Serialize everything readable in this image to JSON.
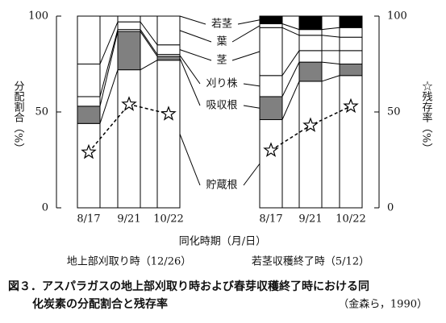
{
  "chart_data": [
    {
      "type": "bar",
      "stacked": true,
      "subtitle": "地上部刈取り時（12/26）",
      "ylabel": "分配割合（%）",
      "categories": [
        "8/17",
        "9/21",
        "10/22"
      ],
      "ylim": [
        0,
        100
      ],
      "yticks": [
        0,
        50,
        100
      ],
      "y2lim": [
        0,
        100
      ],
      "series": [
        {
          "name": "貯蔵根",
          "color": "#ffffff",
          "values": [
            44,
            72,
            77
          ]
        },
        {
          "name": "吸収根",
          "color": "#808080",
          "values": [
            9,
            20,
            2
          ]
        },
        {
          "name": "刈り株",
          "color": "#ffffff",
          "values": [
            5,
            1,
            1
          ]
        },
        {
          "name": "茎",
          "color": "#ffffff",
          "values": [
            17,
            4,
            5
          ]
        },
        {
          "name": "葉",
          "color": "#ffffff",
          "values": [
            25,
            3,
            15
          ]
        },
        {
          "name": "若茎",
          "color": "#000000",
          "values": [
            0,
            0,
            0
          ]
        },
        {
          "type": "line",
          "axis": "y2",
          "color": "#000000",
          "values": [
            29,
            54,
            49
          ]
        }
      ]
    },
    {
      "type": "bar",
      "stacked": true,
      "subtitle": "若茎収穫終了時（5/12）",
      "ylabel": "☆残存率（%）",
      "categories": [
        "8/17",
        "9/21",
        "10/22"
      ],
      "ylim": [
        0,
        100
      ],
      "y2lim": [
        0,
        100
      ],
      "y2ticks": [
        0,
        50,
        100
      ],
      "series": [
        {
          "color": "#ffffff",
          "values": [
            46,
            66,
            69
          ]
        },
        {
          "color": "#808080",
          "values": [
            12,
            10,
            6
          ]
        },
        {
          "color": "#ffffff",
          "values": [
            11,
            6,
            7
          ]
        },
        {
          "color": "#ffffff",
          "values": [
            25,
            8,
            7
          ]
        },
        {
          "color": "#ffffff",
          "values": [
            2,
            3,
            5
          ]
        },
        {
          "color": "#000000",
          "values": [
            4,
            7,
            6
          ]
        },
        {
          "type": "line",
          "axis": "y2",
          "color": "#000000",
          "values": [
            30,
            43,
            53
          ]
        }
      ]
    }
  ],
  "xlabel": "同化時期（月/日）",
  "caption": [
    "図３．アスパラガスの地上部刈取り時および春芽収穫終了時における同",
    "化炭素の分配割合と残存率"
  ],
  "source": "（金森ら，1990）"
}
